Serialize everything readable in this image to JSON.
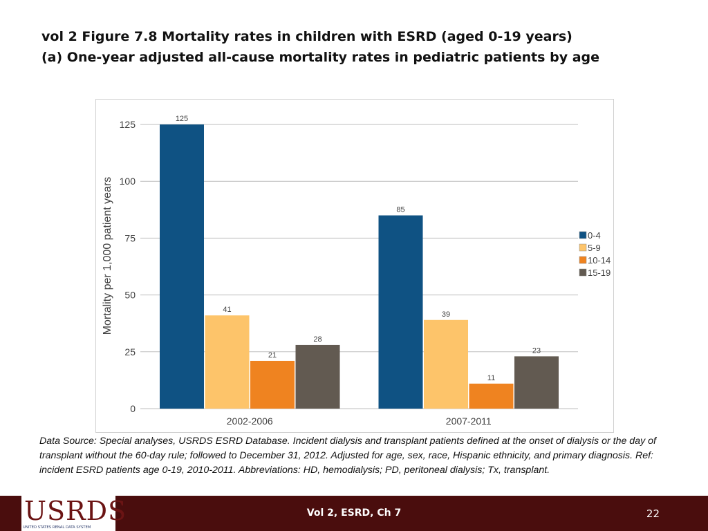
{
  "slide": {
    "title_line1": "vol 2 Figure 7.8 Mortality rates in children with ESRD (aged 0-19 years)",
    "title_line2": "(a) One-year adjusted all-cause mortality rates in pediatric patients by age",
    "note": "Data Source: Special analyses, USRDS ESRD Database. Incident dialysis and transplant patients defined at the onset of dialysis or the day of transplant without the 60-day rule; followed to December 31, 2012. Adjusted for age, sex, race, Hispanic ethnicity, and primary diagnosis. Ref: incident ESRD patients age 0-19, 2010-2011. Abbreviations: HD, hemodialysis; PD, peritoneal dialysis; Tx, transplant."
  },
  "footer": {
    "logo_text": "USRDS",
    "logo_subtext": "UNITED STATES RENAL DATA SYSTEM",
    "center_text": "Vol 2, ESRD, Ch 7",
    "page_number": "22",
    "background_color": "#4a0d0d"
  },
  "chart_data": {
    "type": "bar",
    "title": "",
    "xlabel": "",
    "ylabel": "Mortality per 1,000 patient years",
    "categories": [
      "2002-2006",
      "2007-2011"
    ],
    "ylim": [
      0,
      125
    ],
    "yticks": [
      0,
      25,
      50,
      75,
      100,
      125
    ],
    "grid": true,
    "legend_position": "right",
    "series": [
      {
        "name": "0-4",
        "values": [
          125,
          85
        ],
        "labels": [
          "125",
          "85"
        ],
        "color": "#0f5283"
      },
      {
        "name": "5-9",
        "values": [
          41,
          39
        ],
        "labels": [
          "41",
          "39"
        ],
        "color": "#fdc46a"
      },
      {
        "name": "10-14",
        "values": [
          21,
          11
        ],
        "labels": [
          "21",
          "11"
        ],
        "color": "#ef8320"
      },
      {
        "name": "15-19",
        "values": [
          28,
          23
        ],
        "labels": [
          "28",
          "23"
        ],
        "color": "#625a51"
      }
    ]
  }
}
